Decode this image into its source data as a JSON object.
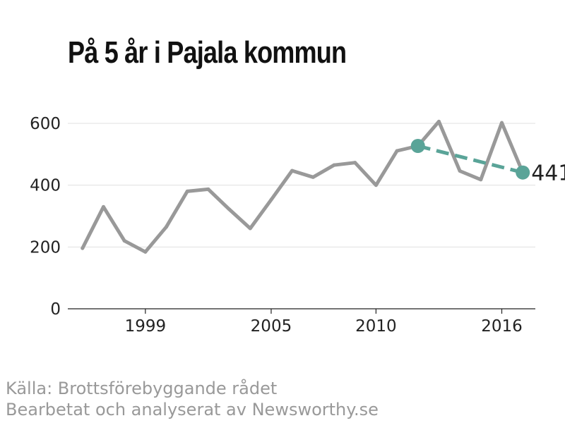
{
  "title": "På 5 år i Pajala kommun",
  "footer": {
    "source": "Källa: Brottsförebyggande rådet",
    "credit": "Bearbetat och analyserat av Newsworthy.se"
  },
  "colors": {
    "series": "#999999",
    "highlight": "#5aa498",
    "grid": "#e0e0e0",
    "axis": "#222222"
  },
  "chart_data": {
    "type": "line",
    "title": "På 5 år i Pajala kommun",
    "xlabel": "",
    "ylabel": "",
    "xlim": [
      1995.3,
      2017.6
    ],
    "ylim": [
      0,
      600
    ],
    "x_ticks": [
      1999,
      2005,
      2010,
      2016
    ],
    "y_ticks": [
      0,
      200,
      400,
      600
    ],
    "grid": true,
    "series": [
      {
        "x": [
          1996,
          1997,
          1998,
          1999,
          2000,
          2001,
          2002,
          2003,
          2004,
          2005,
          2006,
          2007,
          2008,
          2009,
          2010,
          2011,
          2012,
          2013,
          2014,
          2015,
          2016,
          2017
        ],
        "values": [
          196,
          330,
          220,
          184,
          265,
          380,
          387,
          322,
          260,
          353,
          447,
          426,
          465,
          473,
          400,
          511,
          527,
          606,
          446,
          418,
          602,
          441
        ]
      }
    ],
    "highlight": {
      "x": [
        2012,
        2017
      ],
      "values": [
        527,
        441
      ],
      "end_label": "441"
    }
  }
}
